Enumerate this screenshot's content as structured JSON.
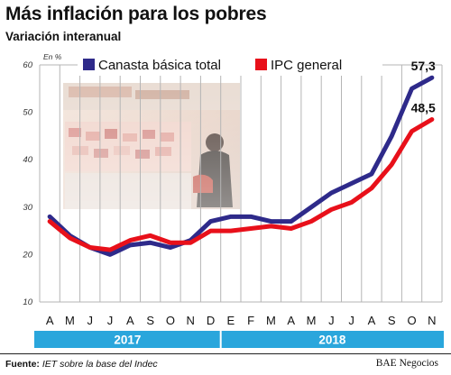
{
  "header": {
    "title": "Más inflación para los pobres",
    "subtitle": "Variación interanual"
  },
  "footer": {
    "source_label": "Fuente:",
    "source_text": "IET sobre la base del Indec",
    "credit": "BAE Negocios"
  },
  "colors": {
    "series_canasta": "#2e2a8a",
    "series_ipc": "#e8101a",
    "year_band": "#2aa6dc",
    "grid": "#b5b5b5"
  },
  "chart_data": {
    "type": "line",
    "title": "Más inflación para los pobres",
    "subtitle": "Variación interanual",
    "unit_label": "En %",
    "categories": [
      "A",
      "M",
      "J",
      "J",
      "A",
      "S",
      "O",
      "N",
      "D",
      "E",
      "F",
      "M",
      "A",
      "M",
      "J",
      "J",
      "A",
      "S",
      "O",
      "N"
    ],
    "years": [
      {
        "label": "2017",
        "from_index": 0,
        "to_index": 8
      },
      {
        "label": "2018",
        "from_index": 9,
        "to_index": 19
      }
    ],
    "ylim": [
      10,
      60
    ],
    "yticks": [
      "10",
      "20",
      "30",
      "40",
      "50",
      "60"
    ],
    "grid": true,
    "legend_position": "top",
    "series": [
      {
        "name": "Canasta básica total",
        "color": "#2e2a8a",
        "values": [
          28,
          24,
          21.5,
          20,
          22,
          22.5,
          21.5,
          23,
          27,
          28,
          28,
          27,
          27,
          30,
          33,
          35,
          37,
          45,
          55,
          57.3
        ],
        "end_label": "57,3"
      },
      {
        "name": "IPC general",
        "color": "#e8101a",
        "values": [
          27,
          23.5,
          21.5,
          21,
          23,
          24,
          22.5,
          22.5,
          25,
          25,
          25.5,
          26,
          25.5,
          27,
          29.5,
          31,
          34,
          39,
          46,
          48.5
        ],
        "end_label": "48,5"
      }
    ]
  }
}
